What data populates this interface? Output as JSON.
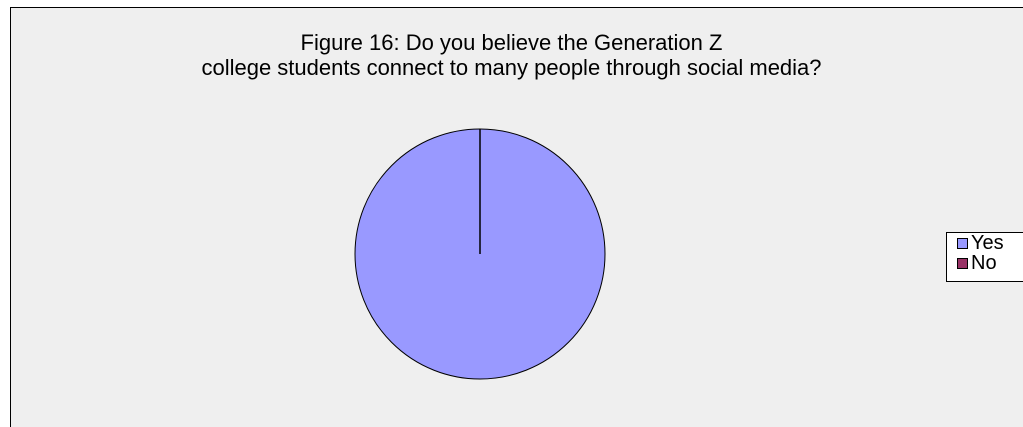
{
  "chart_data": {
    "type": "pie",
    "title": "Figure 16: Do you believe the Generation Z\ncollege  students connect to many people through social media?",
    "categories": [
      "Yes",
      "No"
    ],
    "values": [
      100,
      0
    ],
    "colors": [
      "#9999ff",
      "#993366"
    ],
    "legend_position": "right"
  },
  "colors": {
    "background": "#efefef",
    "slice_outline": "#000000"
  }
}
